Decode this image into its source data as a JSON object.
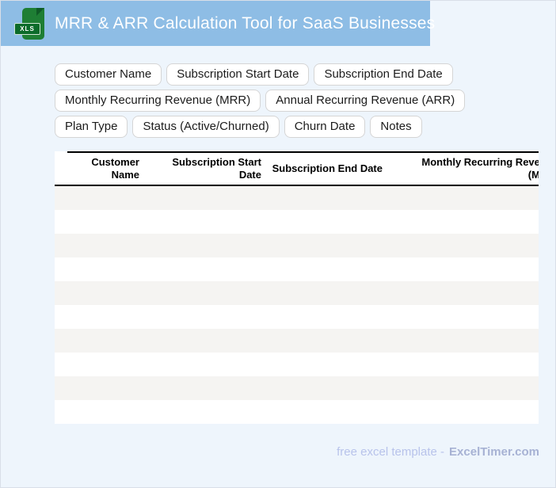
{
  "page": {
    "bg": "#EEF5FC"
  },
  "banner": {
    "title": "MRR & ARR Calculation Tool for SaaS Businesses",
    "bg": "#8EBDE5",
    "icon": {
      "label": "XLS",
      "body_color": "#1E7E34",
      "badge_color": "#0B6B2A"
    }
  },
  "chips": [
    "Customer Name",
    "Subscription Start Date",
    "Subscription End Date",
    "Monthly Recurring Revenue (MRR)",
    "Annual Recurring Revenue (ARR)",
    "Plan Type",
    "Status (Active/Churned)",
    "Churn Date",
    "Notes"
  ],
  "table": {
    "columns": [
      "",
      "Customer Name",
      "Subscription Start Date",
      "Subscription End Date",
      "Monthly Recurring Revenue (MRR)"
    ],
    "empty_row_count": 10,
    "stripe_color": "#F5F4F2"
  },
  "footer": {
    "text": "free excel template -",
    "brand": "ExcelTimer.com"
  }
}
